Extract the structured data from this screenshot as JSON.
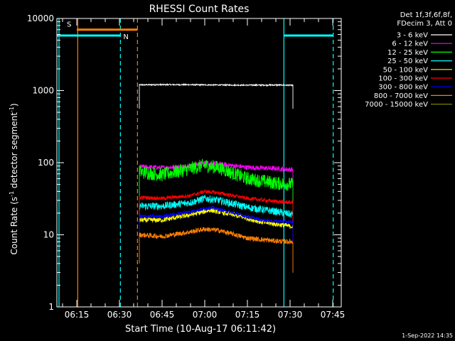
{
  "chart_data": {
    "type": "line",
    "title": "RHESSI Count Rates",
    "xlabel": "Start Time (10-Aug-17 06:11:42)",
    "ylabel_main": "Count Rate (s",
    "ylabel_exp1": "-1",
    "ylabel_mid": " detector segment",
    "ylabel_exp2": "-1",
    "ylabel_end": ")",
    "yscale": "log",
    "xlim": [
      "06:08:00",
      "07:48:00"
    ],
    "ylim": [
      1,
      10000
    ],
    "x_tick_labels": [
      "06:15",
      "06:30",
      "06:45",
      "07:00",
      "07:15",
      "07:30",
      "07:45"
    ],
    "y_tick_labels": [
      "1",
      "10",
      "100",
      "1000",
      "10000"
    ],
    "legend_header": [
      "Det 1f,3f,6f,8f,",
      "FDecim 3, Att 0"
    ],
    "series": [
      {
        "name": "3 - 6 keV",
        "color": "#ffffff",
        "noise": 0.02,
        "profile": [
          [
            "06:37:00",
            1200
          ],
          [
            "06:45:00",
            1210
          ],
          [
            "06:55:00",
            1205
          ],
          [
            "07:05:00",
            1195
          ],
          [
            "07:15:00",
            1190
          ],
          [
            "07:25:00",
            1195
          ],
          [
            "07:31:00",
            1185
          ]
        ]
      },
      {
        "name": "6 - 12 keV",
        "color": "#ff00ff",
        "noise": 0.08,
        "profile": [
          [
            "06:37:00",
            88
          ],
          [
            "06:45:00",
            85
          ],
          [
            "06:55:00",
            90
          ],
          [
            "07:00:00",
            100
          ],
          [
            "07:05:00",
            96
          ],
          [
            "07:15:00",
            86
          ],
          [
            "07:25:00",
            83
          ],
          [
            "07:31:00",
            80
          ]
        ]
      },
      {
        "name": "12 - 25 keV",
        "color": "#00ff00",
        "noise": 0.22,
        "profile": [
          [
            "06:37:00",
            75
          ],
          [
            "06:45:00",
            68
          ],
          [
            "06:52:00",
            78
          ],
          [
            "07:00:00",
            92
          ],
          [
            "07:05:00",
            85
          ],
          [
            "07:15:00",
            60
          ],
          [
            "07:25:00",
            52
          ],
          [
            "07:31:00",
            50
          ]
        ]
      },
      {
        "name": "25 - 50 keV",
        "color": "#00ffff",
        "noise": 0.12,
        "profile": [
          [
            "06:37:00",
            25
          ],
          [
            "06:45:00",
            25
          ],
          [
            "06:55:00",
            28
          ],
          [
            "07:00:00",
            32
          ],
          [
            "07:05:00",
            30
          ],
          [
            "07:15:00",
            24
          ],
          [
            "07:25:00",
            21
          ],
          [
            "07:31:00",
            19
          ]
        ]
      },
      {
        "name": "50 - 100 keV",
        "color": "#ffff00",
        "noise": 0.08,
        "profile": [
          [
            "06:37:00",
            16
          ],
          [
            "06:45:00",
            16
          ],
          [
            "06:55:00",
            19
          ],
          [
            "07:02:00",
            22
          ],
          [
            "07:10:00",
            19
          ],
          [
            "07:20:00",
            15
          ],
          [
            "07:31:00",
            13
          ]
        ]
      },
      {
        "name": "100 - 300 keV",
        "color": "#ff0000",
        "noise": 0.06,
        "profile": [
          [
            "06:37:00",
            33
          ],
          [
            "06:45:00",
            32
          ],
          [
            "06:55:00",
            35
          ],
          [
            "07:00:00",
            40
          ],
          [
            "07:05:00",
            38
          ],
          [
            "07:15:00",
            32
          ],
          [
            "07:25:00",
            29
          ],
          [
            "07:31:00",
            28
          ]
        ]
      },
      {
        "name": "300 - 800 keV",
        "color": "#0000ff",
        "noise": 0.06,
        "profile": [
          [
            "06:37:00",
            18
          ],
          [
            "06:45:00",
            18
          ],
          [
            "06:55:00",
            21
          ],
          [
            "07:02:00",
            24
          ],
          [
            "07:10:00",
            20
          ],
          [
            "07:20:00",
            16
          ],
          [
            "07:31:00",
            15
          ]
        ]
      },
      {
        "name": "800 - 7000 keV",
        "color": "#ff8000",
        "noise": 0.08,
        "profile": [
          [
            "06:37:00",
            10
          ],
          [
            "06:45:00",
            9.5
          ],
          [
            "06:55:00",
            11
          ],
          [
            "07:00:00",
            12
          ],
          [
            "07:05:00",
            11.5
          ],
          [
            "07:15:00",
            9
          ],
          [
            "07:25:00",
            8.2
          ],
          [
            "07:31:00",
            8
          ]
        ]
      },
      {
        "name": "7000 - 15000 keV",
        "color": "#808000",
        "noise": 0.0,
        "profile": []
      }
    ],
    "flags": [
      {
        "label": "S",
        "color": "#ff8000",
        "value": 7000,
        "start": "06:15:00",
        "end": "06:36:20"
      },
      {
        "label": "N",
        "color": "#00ffff",
        "value": 5800,
        "start": "06:08:00",
        "end": "06:30:20"
      },
      {
        "label": "",
        "color": "#00ffff",
        "value": 5800,
        "start": "07:27:50",
        "end": "07:45:10"
      }
    ],
    "vlines": [
      {
        "t": "06:08:45",
        "color": "#00ffff",
        "dash": false
      },
      {
        "t": "06:15:20",
        "color": "#ff8000",
        "dash": false
      },
      {
        "t": "06:30:20",
        "color": "#00ffff",
        "dash": true
      },
      {
        "t": "06:36:20",
        "color": "#ff8000",
        "dash": true
      },
      {
        "t": "07:27:50",
        "color": "#00ffff",
        "dash": false
      },
      {
        "t": "07:45:10",
        "color": "#00ffff",
        "dash": true
      }
    ]
  },
  "footer": {
    "timestamp": "1-Sep-2022 14:35"
  }
}
